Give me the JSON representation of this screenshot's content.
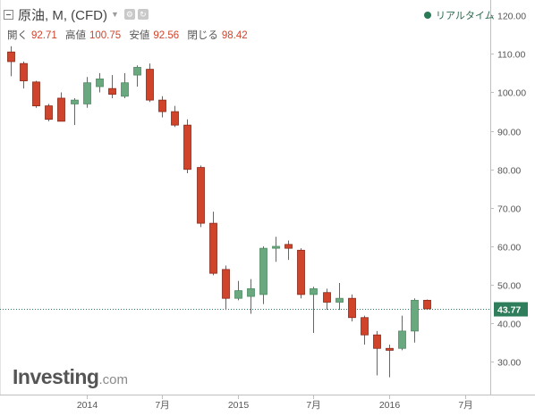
{
  "header": {
    "title": "原油, M, (CFD)",
    "realtime_label": "リアルタイム"
  },
  "ohlc": {
    "open_label": "開く",
    "open": "92.71",
    "high_label": "高値",
    "high": "100.75",
    "low_label": "安値",
    "low": "92.56",
    "close_label": "閉じる",
    "close": "98.42"
  },
  "logo": {
    "main": "Investing",
    "suffix": ".com"
  },
  "colors": {
    "up": "#6aa87f",
    "down": "#d0442c",
    "last_price": "#2e7d5b"
  },
  "chart_data": {
    "type": "candlestick",
    "timeframe": "M",
    "ylim": [
      21.5,
      124
    ],
    "y_ticks": [
      30,
      40,
      50,
      60,
      70,
      80,
      90,
      100,
      110,
      120
    ],
    "y_tick_labels": [
      "30.00",
      "40.00",
      "50.00",
      "60.00",
      "70.00",
      "80.00",
      "90.00",
      "100.00",
      "110.00",
      "120.00"
    ],
    "x_tick_labels": [
      {
        "index": 6,
        "label": "2014"
      },
      {
        "index": 12,
        "label": "7月"
      },
      {
        "index": 18,
        "label": "2015"
      },
      {
        "index": 24,
        "label": "7月"
      },
      {
        "index": 30,
        "label": "2016"
      },
      {
        "index": 36,
        "label": "7月"
      }
    ],
    "last_price": 43.77,
    "last_price_label": "43.77",
    "candles": [
      {
        "o": 110.5,
        "h": 112.0,
        "l": 104.2,
        "c": 108.0
      },
      {
        "o": 107.5,
        "h": 108.0,
        "l": 101.0,
        "c": 103.0
      },
      {
        "o": 102.7,
        "h": 103.0,
        "l": 96.0,
        "c": 96.5
      },
      {
        "o": 96.5,
        "h": 97.0,
        "l": 92.5,
        "c": 93.0
      },
      {
        "o": 98.5,
        "h": 100.0,
        "l": 92.5,
        "c": 92.5
      },
      {
        "o": 97.0,
        "h": 98.5,
        "l": 91.5,
        "c": 98.0
      },
      {
        "o": 97.0,
        "h": 104.0,
        "l": 96.0,
        "c": 102.5
      },
      {
        "o": 101.5,
        "h": 105.0,
        "l": 100.0,
        "c": 103.5
      },
      {
        "o": 101.0,
        "h": 104.5,
        "l": 98.5,
        "c": 99.5
      },
      {
        "o": 99.0,
        "h": 105.0,
        "l": 98.5,
        "c": 102.5
      },
      {
        "o": 104.5,
        "h": 107.0,
        "l": 101.5,
        "c": 106.5
      },
      {
        "o": 106.0,
        "h": 107.5,
        "l": 97.5,
        "c": 98.0
      },
      {
        "o": 98.0,
        "h": 99.0,
        "l": 93.5,
        "c": 95.0
      },
      {
        "o": 95.0,
        "h": 96.5,
        "l": 91.0,
        "c": 91.5
      },
      {
        "o": 91.5,
        "h": 93.0,
        "l": 79.0,
        "c": 80.0
      },
      {
        "o": 80.5,
        "h": 81.0,
        "l": 65.0,
        "c": 66.0
      },
      {
        "o": 66.0,
        "h": 69.0,
        "l": 52.5,
        "c": 53.0
      },
      {
        "o": 54.0,
        "h": 55.0,
        "l": 43.5,
        "c": 46.5
      },
      {
        "o": 46.5,
        "h": 51.0,
        "l": 46.0,
        "c": 48.5
      },
      {
        "o": 47.0,
        "h": 51.5,
        "l": 42.5,
        "c": 49.0
      },
      {
        "o": 47.5,
        "h": 60.0,
        "l": 45.0,
        "c": 59.5
      },
      {
        "o": 59.5,
        "h": 62.5,
        "l": 56.0,
        "c": 60.0
      },
      {
        "o": 60.5,
        "h": 61.5,
        "l": 56.5,
        "c": 59.5
      },
      {
        "o": 59.0,
        "h": 59.5,
        "l": 46.5,
        "c": 47.5
      },
      {
        "o": 47.5,
        "h": 49.5,
        "l": 37.5,
        "c": 49.0
      },
      {
        "o": 48.0,
        "h": 49.0,
        "l": 43.5,
        "c": 45.5
      },
      {
        "o": 45.5,
        "h": 50.5,
        "l": 43.5,
        "c": 46.5
      },
      {
        "o": 46.5,
        "h": 47.5,
        "l": 40.5,
        "c": 41.5
      },
      {
        "o": 41.5,
        "h": 42.0,
        "l": 34.5,
        "c": 37.0
      },
      {
        "o": 37.0,
        "h": 38.0,
        "l": 26.5,
        "c": 33.5
      },
      {
        "o": 33.5,
        "h": 34.5,
        "l": 26.0,
        "c": 33.0
      },
      {
        "o": 33.5,
        "h": 42.0,
        "l": 33.0,
        "c": 38.0
      },
      {
        "o": 38.0,
        "h": 46.5,
        "l": 35.0,
        "c": 46.0
      },
      {
        "o": 46.0,
        "h": 46.2,
        "l": 43.5,
        "c": 43.77
      }
    ]
  }
}
